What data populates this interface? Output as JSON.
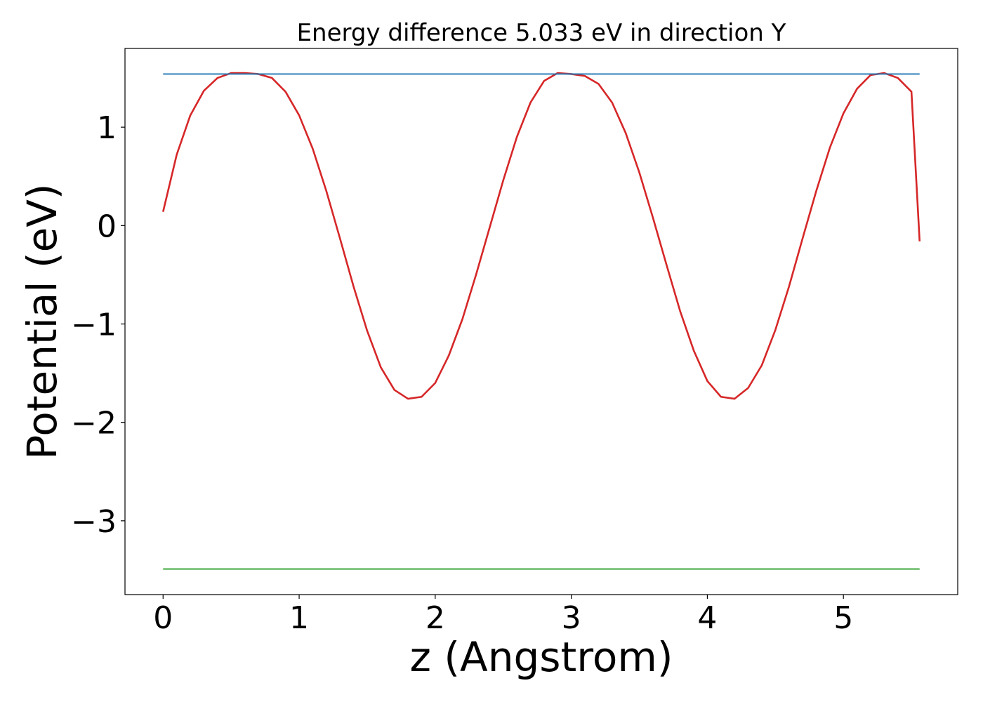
{
  "chart_data": {
    "type": "line",
    "title": "Energy difference 5.033 eV in direction Y",
    "xlabel": "z (Angstrom)",
    "ylabel": "Potential (eV)",
    "xlim": [
      -0.28,
      5.84
    ],
    "ylim": [
      -3.75,
      1.8
    ],
    "xticks": [
      0,
      1,
      2,
      3,
      4,
      5
    ],
    "xtick_labels": [
      "0",
      "1",
      "2",
      "3",
      "4",
      "5"
    ],
    "yticks": [
      1,
      0,
      -1,
      -2,
      -3
    ],
    "ytick_labels": [
      "1",
      "0",
      "−1",
      "−2",
      "−3"
    ],
    "grid": false,
    "legend": "none",
    "series": [
      {
        "color": "#d62728",
        "x": [
          0.0,
          0.1,
          0.2,
          0.3,
          0.4,
          0.5,
          0.6,
          0.7,
          0.8,
          0.9,
          1.0,
          1.1,
          1.2,
          1.3,
          1.4,
          1.5,
          1.6,
          1.7,
          1.8,
          1.9,
          2.0,
          2.1,
          2.2,
          2.3,
          2.4,
          2.5,
          2.6,
          2.7,
          2.8,
          2.9,
          3.0,
          3.1,
          3.2,
          3.3,
          3.4,
          3.5,
          3.6,
          3.7,
          3.8,
          3.9,
          4.0,
          4.1,
          4.2,
          4.3,
          4.4,
          4.5,
          4.6,
          4.7,
          4.8,
          4.9,
          5.0,
          5.1,
          5.2,
          5.3,
          5.4,
          5.5,
          5.56
        ],
        "y": [
          0.14,
          0.72,
          1.12,
          1.37,
          1.5,
          1.55,
          1.55,
          1.54,
          1.5,
          1.36,
          1.12,
          0.78,
          0.35,
          -0.13,
          -0.62,
          -1.07,
          -1.44,
          -1.67,
          -1.76,
          -1.74,
          -1.6,
          -1.32,
          -0.95,
          -0.5,
          -0.02,
          0.46,
          0.9,
          1.25,
          1.47,
          1.55,
          1.54,
          1.52,
          1.44,
          1.25,
          0.94,
          0.54,
          0.08,
          -0.4,
          -0.87,
          -1.27,
          -1.58,
          -1.74,
          -1.76,
          -1.65,
          -1.42,
          -1.06,
          -0.62,
          -0.13,
          0.35,
          0.79,
          1.14,
          1.39,
          1.53,
          1.55,
          1.5,
          1.36,
          -0.16
        ]
      },
      {
        "color": "#1f77b4",
        "x": [
          0.0,
          5.56
        ],
        "y": [
          1.54,
          1.54
        ]
      },
      {
        "color": "#2ca02c",
        "x": [
          0.0,
          5.56
        ],
        "y": [
          -3.49,
          -3.49
        ]
      }
    ]
  }
}
